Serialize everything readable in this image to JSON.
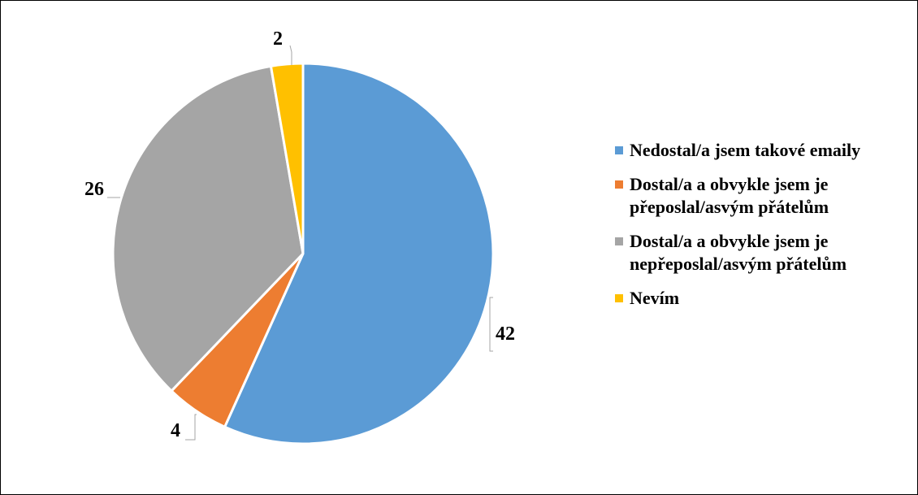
{
  "chart_data": {
    "type": "pie",
    "categories": [
      "Nedostal/a jsem takové emaily",
      "Dostal/a a obvykle jsem je přeposlal/asvým přátelům",
      "Dostal/a a obvykle jsem je nepřeposlal/asvým přátelům",
      "Nevím"
    ],
    "values": [
      42,
      4,
      26,
      2
    ],
    "colors": [
      "#5B9BD5",
      "#ED7D31",
      "#A5A5A5",
      "#FFC000"
    ],
    "start_angle_deg": 0,
    "direction": "clockwise",
    "data_labels": [
      "42",
      "4",
      "26",
      "2"
    ],
    "legend_position": "right"
  }
}
